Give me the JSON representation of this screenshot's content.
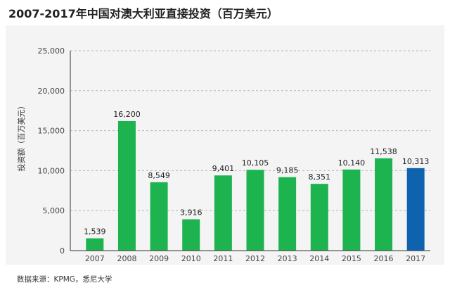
{
  "header": {
    "title": "2007-2017年中国对澳大利亚直接投资（百万美元）"
  },
  "footer": {
    "source": "数据来源：KPMG，悉尼大学"
  },
  "chart_data": {
    "type": "bar",
    "title": "2007-2017年中国对澳大利亚直接投资（百万美元）",
    "xlabel": "",
    "ylabel": "投资额（百万美元）",
    "categories": [
      "2007",
      "2008",
      "2009",
      "2010",
      "2011",
      "2012",
      "2013",
      "2014",
      "2015",
      "2016",
      "2017"
    ],
    "values": [
      1539,
      16200,
      8549,
      3916,
      9401,
      10105,
      9185,
      8351,
      10140,
      11538,
      10313
    ],
    "value_labels": [
      "1,539",
      "16,200",
      "8,549",
      "3,916",
      "9,401",
      "10,105",
      "9,185",
      "8,351",
      "10,140",
      "11,538",
      "10,313"
    ],
    "yticks": [
      0,
      5000,
      10000,
      15000,
      20000,
      25000
    ],
    "ytick_labels": [
      "0",
      "5,000",
      "10,000",
      "15,000",
      "20,000",
      "25,000"
    ],
    "ylim": [
      0,
      25000
    ],
    "grid": true,
    "colors": {
      "default": "#1db34f",
      "highlight": "#0f62ad",
      "grid": "#b5b5b5",
      "axis": "#333333"
    },
    "highlight_index": 10
  }
}
